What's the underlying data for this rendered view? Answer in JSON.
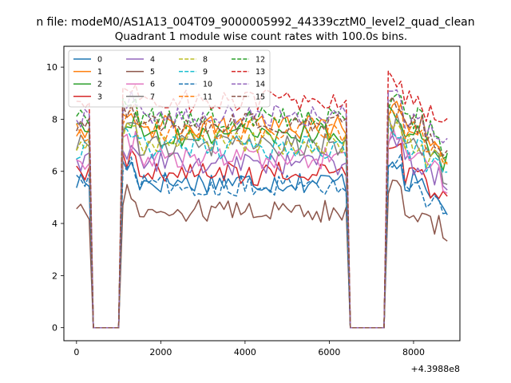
{
  "figure": {
    "suptitle": "n file: modeM0/AS1A13_004T09_9000005992_44339cztM0_level2_quad_clean",
    "offset_label": "+4.3988e8"
  },
  "chart_data": {
    "type": "line",
    "title": "Quadrant 1 module wise count rates with 100.0s bins.",
    "xlabel": "",
    "ylabel": "",
    "xlim": [
      -300,
      9100
    ],
    "ylim": [
      -0.5,
      10.8
    ],
    "xticks": [
      0,
      2000,
      4000,
      6000,
      8000
    ],
    "yticks": [
      0,
      2,
      4,
      6,
      8,
      10
    ],
    "grid": false,
    "legend": {
      "placement": "top-left",
      "columns": 4
    },
    "series": [
      {
        "name": "0",
        "color": "#1f77b4",
        "dashed": false,
        "level": 5.6
      },
      {
        "name": "1",
        "color": "#ff7f0e",
        "dashed": false,
        "level": 7.7
      },
      {
        "name": "2",
        "color": "#2ca02c",
        "dashed": false,
        "level": 7.4
      },
      {
        "name": "3",
        "color": "#d62728",
        "dashed": false,
        "level": 5.9
      },
      {
        "name": "4",
        "color": "#9467bd",
        "dashed": false,
        "level": 6.3
      },
      {
        "name": "5",
        "color": "#8c564b",
        "dashed": false,
        "level": 4.5
      },
      {
        "name": "6",
        "color": "#e377c2",
        "dashed": false,
        "level": 6.5
      },
      {
        "name": "7",
        "color": "#7f7f7f",
        "dashed": false,
        "level": 7.0
      },
      {
        "name": "8",
        "color": "#bcbd22",
        "dashed": true,
        "level": 7.1
      },
      {
        "name": "9",
        "color": "#17becf",
        "dashed": true,
        "level": 6.9
      },
      {
        "name": "10",
        "color": "#1f77b4",
        "dashed": true,
        "level": 5.5
      },
      {
        "name": "11",
        "color": "#ff7f0e",
        "dashed": true,
        "level": 7.6
      },
      {
        "name": "12",
        "color": "#2ca02c",
        "dashed": true,
        "level": 8.0
      },
      {
        "name": "13",
        "color": "#d62728",
        "dashed": true,
        "level": 8.7
      },
      {
        "name": "14",
        "color": "#9467bd",
        "dashed": true,
        "level": 8.1
      },
      {
        "name": "15",
        "color": "#8c564b",
        "dashed": true,
        "level": 7.8
      }
    ],
    "time_profile": {
      "x_start": 0,
      "x_step": 100,
      "x_end": 8800,
      "zero_intervals": [
        [
          400,
          1000
        ],
        [
          6500,
          7300
        ]
      ]
    }
  }
}
